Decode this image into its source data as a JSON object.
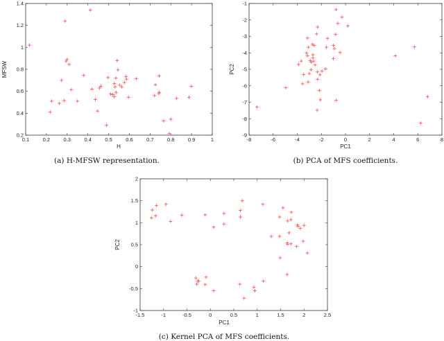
{
  "style": {
    "marker_color": "#ff5a5a",
    "axis_color": "#333333"
  },
  "chart_data": [
    {
      "type": "scatter",
      "caption": "(a) H-MFSW representation.",
      "xlabel": "H",
      "ylabel": "MFSW",
      "xlim": [
        0.1,
        1.0
      ],
      "ylim": [
        0.2,
        1.4
      ],
      "xticks": [
        "0.1",
        "0.2",
        "0.3",
        "0.4",
        "0.5",
        "0.6",
        "0.7",
        "0.8",
        "0.9",
        "1"
      ],
      "xtick_values": [
        0.1,
        0.2,
        0.3,
        0.4,
        0.5,
        0.6,
        0.7,
        0.8,
        0.9,
        1.0
      ],
      "yticks": [
        "0.2",
        "0.4",
        "0.6",
        "0.8",
        "1",
        "1.2",
        "1.4"
      ],
      "ytick_values": [
        0.2,
        0.4,
        0.6,
        0.8,
        1.0,
        1.2,
        1.4
      ],
      "points": [
        [
          0.118,
          1.02
        ],
        [
          0.412,
          1.34
        ],
        [
          0.29,
          1.24
        ],
        [
          0.3,
          0.89
        ],
        [
          0.295,
          0.875
        ],
        [
          0.31,
          0.845
        ],
        [
          0.273,
          0.7
        ],
        [
          0.38,
          0.745
        ],
        [
          0.32,
          0.615
        ],
        [
          0.225,
          0.51
        ],
        [
          0.218,
          0.41
        ],
        [
          0.262,
          0.49
        ],
        [
          0.286,
          0.515
        ],
        [
          0.35,
          0.51
        ],
        [
          0.42,
          0.62
        ],
        [
          0.436,
          0.525
        ],
        [
          0.447,
          0.42
        ],
        [
          0.456,
          0.63
        ],
        [
          0.463,
          0.645
        ],
        [
          0.49,
          0.29
        ],
        [
          0.497,
          0.725
        ],
        [
          0.51,
          0.575
        ],
        [
          0.52,
          0.57
        ],
        [
          0.527,
          0.67
        ],
        [
          0.531,
          0.64
        ],
        [
          0.527,
          0.55
        ],
        [
          0.536,
          0.59
        ],
        [
          0.535,
          0.72
        ],
        [
          0.541,
          0.88
        ],
        [
          0.545,
          0.795
        ],
        [
          0.554,
          0.655
        ],
        [
          0.564,
          0.64
        ],
        [
          0.576,
          0.68
        ],
        [
          0.584,
          0.735
        ],
        [
          0.586,
          0.71
        ],
        [
          0.596,
          0.545
        ],
        [
          0.634,
          0.715
        ],
        [
          0.721,
          0.56
        ],
        [
          0.726,
          0.66
        ],
        [
          0.744,
          0.74
        ],
        [
          0.744,
          0.59
        ],
        [
          0.742,
          0.58
        ],
        [
          0.765,
          0.33
        ],
        [
          0.8,
          0.345
        ],
        [
          0.793,
          0.215
        ],
        [
          0.828,
          0.535
        ],
        [
          0.888,
          0.545
        ],
        [
          0.899,
          0.645
        ]
      ]
    },
    {
      "type": "scatter",
      "caption": "(b) PCA of MFS coefficients.",
      "xlabel": "PC1",
      "ylabel": "PC2",
      "xlim": [
        -8,
        8
      ],
      "ylim": [
        -9,
        -1
      ],
      "xticks": [
        "-8",
        "-6",
        "-4",
        "-2",
        "0",
        "2",
        "4",
        "6",
        "8"
      ],
      "xtick_values": [
        -8,
        -6,
        -4,
        -2,
        0,
        2,
        4,
        6,
        8
      ],
      "yticks": [
        "-9",
        "-8",
        "-7",
        "-6",
        "-5",
        "-4",
        "-3",
        "-2",
        "-1"
      ],
      "ytick_values": [
        -9,
        -8,
        -7,
        -6,
        -5,
        -4,
        -3,
        -2,
        -1
      ],
      "points": [
        [
          -7.35,
          -7.29
        ],
        [
          -4.96,
          -6.12
        ],
        [
          -3.89,
          -4.7
        ],
        [
          -3.67,
          -4.5
        ],
        [
          -3.23,
          -4.01
        ],
        [
          -3.15,
          -4.18
        ],
        [
          -3.15,
          -3.1
        ],
        [
          -3.08,
          -3.66
        ],
        [
          -3.56,
          -5.88
        ],
        [
          -3.47,
          -5.32
        ],
        [
          -3.1,
          -5.77
        ],
        [
          -3.0,
          -5.26
        ],
        [
          -2.93,
          -4.47
        ],
        [
          -2.84,
          -4.56
        ],
        [
          -2.86,
          -5.02
        ],
        [
          -2.75,
          -3.48
        ],
        [
          -2.7,
          -4.12
        ],
        [
          -2.7,
          -4.3
        ],
        [
          -2.64,
          -4.5
        ],
        [
          -2.6,
          -3.55
        ],
        [
          -2.52,
          -4.74
        ],
        [
          -2.4,
          -2.85
        ],
        [
          -2.31,
          -2.43
        ],
        [
          -2.33,
          -5.16
        ],
        [
          -2.31,
          -5.61
        ],
        [
          -2.35,
          -7.48
        ],
        [
          -2.16,
          -6.29
        ],
        [
          -2.12,
          -5.33
        ],
        [
          -2.08,
          -6.85
        ],
        [
          -1.95,
          -5.11
        ],
        [
          -1.67,
          -4.98
        ],
        [
          -1.58,
          -3.66
        ],
        [
          -1.49,
          -3.12
        ],
        [
          -1.01,
          -3.55
        ],
        [
          -1.01,
          -4.35
        ],
        [
          -0.92,
          -3.74
        ],
        [
          -0.82,
          -2.88
        ],
        [
          -0.77,
          -6.88
        ],
        [
          -0.78,
          -1.37
        ],
        [
          -0.64,
          -2.21
        ],
        [
          -0.45,
          -3.98
        ],
        [
          -0.3,
          -1.83
        ],
        [
          0.2,
          -2.36
        ],
        [
          4.14,
          -4.18
        ],
        [
          5.72,
          -3.64
        ],
        [
          6.24,
          -8.27
        ],
        [
          6.81,
          -6.66
        ]
      ]
    },
    {
      "type": "scatter",
      "caption": "(c) Kernel PCA of MFS coefficients.",
      "xlabel": "PC1",
      "ylabel": "PC2",
      "xlim": [
        -1.5,
        2.5
      ],
      "ylim": [
        -1,
        2
      ],
      "xticks": [
        "-1.5",
        "-1",
        "-0.5",
        "0",
        "0.5",
        "1",
        "1.5",
        "2",
        "2.5"
      ],
      "xtick_values": [
        -1.5,
        -1,
        -0.5,
        0,
        0.5,
        1,
        1.5,
        2,
        2.5
      ],
      "yticks": [
        "-1",
        "-0.5",
        "0",
        "0.5",
        "1",
        "1.5",
        "2"
      ],
      "ytick_values": [
        -1,
        -0.5,
        0,
        0.5,
        1,
        1.5,
        2
      ],
      "points": [
        [
          -1.26,
          1.11
        ],
        [
          -1.24,
          1.29
        ],
        [
          -1.17,
          1.16
        ],
        [
          -1.15,
          1.39
        ],
        [
          -0.95,
          1.42
        ],
        [
          -0.85,
          1.03
        ],
        [
          -0.61,
          1.17
        ],
        [
          -0.11,
          1.18
        ],
        [
          0.07,
          0.9
        ],
        [
          0.29,
          1.21
        ],
        [
          0.29,
          0.97
        ],
        [
          0.64,
          1.28
        ],
        [
          0.64,
          1.13
        ],
        [
          0.68,
          1.5
        ],
        [
          1.12,
          1.42
        ],
        [
          1.3,
          0.69
        ],
        [
          1.48,
          0.69
        ],
        [
          1.48,
          1.13
        ],
        [
          1.55,
          1.34
        ],
        [
          1.49,
          0.2
        ],
        [
          1.64,
          0.54
        ],
        [
          1.65,
          0.51
        ],
        [
          1.65,
          1.04
        ],
        [
          1.68,
          0.77
        ],
        [
          1.72,
          1.07
        ],
        [
          1.73,
          1.24
        ],
        [
          1.72,
          0.52
        ],
        [
          1.84,
          0.46
        ],
        [
          1.86,
          0.95
        ],
        [
          1.87,
          0.92
        ],
        [
          1.92,
          0.87
        ],
        [
          1.98,
          0.58
        ],
        [
          2.0,
          0.94
        ],
        [
          2.07,
          0.31
        ],
        [
          1.64,
          -0.18
        ],
        [
          1.13,
          -0.33
        ],
        [
          0.93,
          -0.47
        ],
        [
          0.95,
          -0.55
        ],
        [
          0.72,
          -0.72
        ],
        [
          0.63,
          -0.4
        ],
        [
          0.07,
          -0.55
        ],
        [
          -0.09,
          -0.24
        ],
        [
          -0.11,
          -0.41
        ],
        [
          -0.31,
          -0.26
        ],
        [
          -0.27,
          -0.33
        ],
        [
          -0.25,
          -0.33
        ],
        [
          -0.29,
          -0.4
        ]
      ]
    }
  ]
}
